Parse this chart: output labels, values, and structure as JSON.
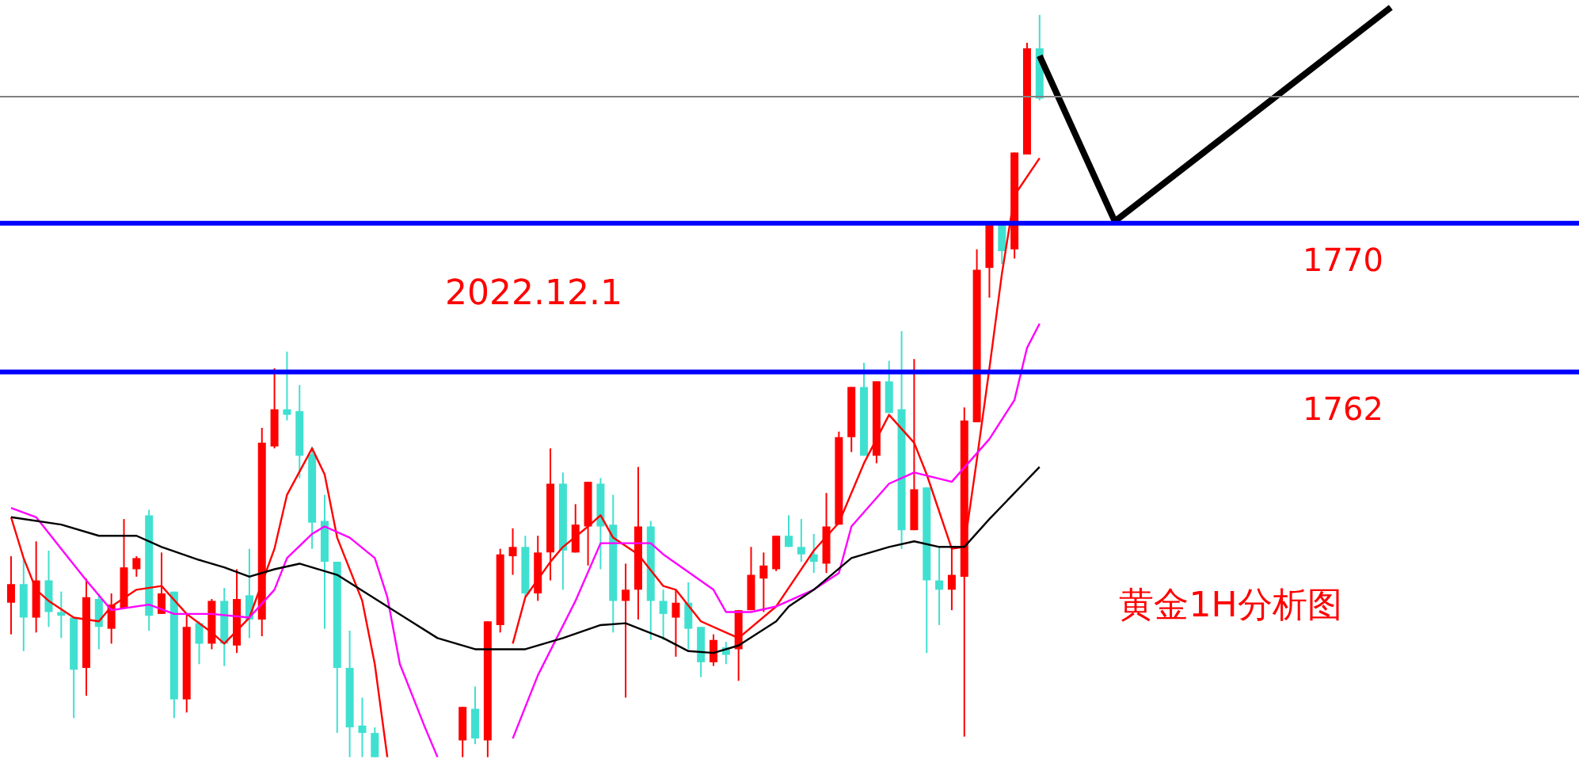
{
  "chart_data": {
    "type": "candlestick",
    "categories": [
      null,
      null,
      null,
      null,
      null,
      null,
      null,
      null,
      null,
      null,
      null,
      null,
      null,
      null,
      null,
      null,
      null,
      null,
      null,
      null,
      null,
      null,
      null,
      null,
      null,
      null,
      null,
      null,
      null,
      null,
      null,
      null,
      null,
      null,
      null,
      null,
      null,
      null,
      null,
      null,
      null,
      null,
      null,
      null,
      null,
      null,
      null,
      null,
      null,
      null,
      null,
      null,
      null,
      null,
      null,
      null,
      null,
      null,
      null,
      null,
      null,
      null,
      null,
      null,
      null,
      null,
      null,
      null,
      null,
      null,
      null,
      null,
      null,
      null,
      null,
      null,
      null,
      null,
      null,
      null,
      null,
      null,
      null,
      null,
      null,
      null,
      null,
      null,
      null,
      null,
      null,
      null,
      null,
      null,
      null,
      null,
      null,
      null,
      null,
      null,
      null,
      null,
      null,
      null,
      null,
      null,
      null,
      null,
      null,
      null,
      null,
      null,
      null,
      null,
      null,
      null,
      null,
      null,
      null,
      null,
      null,
      null,
      null,
      null,
      null
    ],
    "ohlc": [
      [
        1749.6,
        1752.1,
        1747.9,
        1750.6
      ],
      [
        1750.6,
        1752.0,
        1747.0,
        1748.8
      ],
      [
        1748.8,
        1752.9,
        1748.0,
        1750.8
      ],
      [
        1750.8,
        1752.4,
        1748.3,
        1749.1
      ],
      [
        1749.1,
        1750.2,
        1747.7,
        1748.9
      ],
      [
        1748.8,
        1748.8,
        1743.4,
        1746.0
      ],
      [
        1746.1,
        1750.9,
        1744.6,
        1749.9
      ],
      [
        1749.8,
        1750.1,
        1747.1,
        1748.3
      ],
      [
        1748.2,
        1750.1,
        1747.4,
        1749.5
      ],
      [
        1749.3,
        1754.1,
        1749.3,
        1751.5
      ],
      [
        1751.4,
        1752.1,
        1751.0,
        1752.0
      ],
      [
        1754.3,
        1754.6,
        1748.1,
        1748.9
      ],
      [
        1749.0,
        1752.3,
        1749.0,
        1750.1
      ],
      [
        1750.2,
        1750.2,
        1743.4,
        1744.4
      ],
      [
        1744.4,
        1749.0,
        1743.7,
        1748.3
      ],
      [
        1748.5,
        1748.6,
        1746.3,
        1747.4
      ],
      [
        1747.4,
        1749.8,
        1747.1,
        1749.7
      ],
      [
        1749.7,
        1750.4,
        1746.2,
        1747.4
      ],
      [
        1747.3,
        1751.4,
        1746.9,
        1749.8
      ],
      [
        1750.0,
        1752.5,
        1747.7,
        1748.7
      ],
      [
        1748.7,
        1759.0,
        1747.8,
        1758.2
      ],
      [
        1758.0,
        1762.2,
        1757.9,
        1760.0
      ],
      [
        1760.0,
        1763.1,
        1759.4,
        1759.7
      ],
      [
        1759.9,
        1761.3,
        1756.3,
        1757.5
      ],
      [
        1757.6,
        1758.0,
        1752.5,
        1753.9
      ],
      [
        1754.0,
        1755.4,
        1748.2,
        1751.8
      ],
      [
        1751.8,
        1751.8,
        1742.6,
        1746.1
      ],
      [
        1746.1,
        1748.1,
        1741.3,
        1742.9
      ],
      [
        1743.0,
        1744.5,
        1741.3,
        1742.6
      ],
      [
        1742.6,
        1742.9,
        1741.3,
        1741.3
      ],
      null,
      null,
      null,
      null,
      null,
      null,
      [
        1742.2,
        1744.0,
        1741.3,
        1744.0
      ],
      [
        1743.9,
        1745.1,
        1742.0,
        1742.3
      ],
      [
        1742.2,
        1748.6,
        1741.3,
        1748.6
      ],
      [
        1748.4,
        1752.5,
        1748.0,
        1752.2
      ],
      [
        1752.1,
        1753.6,
        1751.1,
        1752.6
      ],
      [
        1752.6,
        1753.2,
        1749.9,
        1750.1
      ],
      [
        1750.1,
        1753.2,
        1749.7,
        1752.3
      ],
      [
        1752.3,
        1757.9,
        1750.8,
        1756.0
      ],
      [
        1756.0,
        1756.6,
        1750.3,
        1752.4
      ],
      [
        1752.3,
        1754.9,
        1752.3,
        1753.8
      ],
      [
        1753.7,
        1756.1,
        1751.6,
        1756.1
      ],
      [
        1756.0,
        1756.3,
        1751.4,
        1753.7
      ],
      [
        1753.8,
        1755.4,
        1748.0,
        1749.7
      ],
      [
        1749.7,
        1751.7,
        1744.5,
        1750.3
      ],
      [
        1750.3,
        1756.9,
        1748.7,
        1753.7
      ],
      [
        1753.7,
        1754.0,
        1747.6,
        1749.7
      ],
      [
        1749.7,
        1750.3,
        1747.6,
        1749.0
      ],
      [
        1748.8,
        1750.3,
        1746.7,
        1749.6
      ],
      [
        1749.6,
        1750.7,
        1747.1,
        1748.2
      ],
      [
        1748.3,
        1748.3,
        1745.6,
        1746.4
      ],
      [
        1746.4,
        1747.9,
        1746.2,
        1747.6
      ],
      [
        1747.2,
        1747.5,
        1746.3,
        1746.8
      ],
      [
        1747.1,
        1749.2,
        1745.4,
        1749.2
      ],
      [
        1749.2,
        1752.6,
        1749.2,
        1751.1
      ],
      [
        1750.9,
        1752.3,
        1749.1,
        1751.6
      ],
      [
        1751.4,
        1753.2,
        1751.3,
        1753.2
      ],
      [
        1753.2,
        1754.3,
        1752.6,
        1752.6
      ],
      [
        1752.6,
        1754.1,
        1751.8,
        1752.2
      ],
      [
        1752.2,
        1753.3,
        1751.2,
        1751.8
      ],
      [
        1751.7,
        1755.5,
        1751.2,
        1753.7
      ],
      [
        1753.8,
        1758.8,
        1753.8,
        1758.5
      ],
      [
        1758.5,
        1761.2,
        1757.7,
        1761.2
      ],
      [
        1761.2,
        1762.5,
        1757.5,
        1757.5
      ],
      [
        1757.5,
        1761.5,
        1757.1,
        1761.5
      ],
      [
        1761.5,
        1762.6,
        1759.8,
        1759.8
      ],
      [
        1760.0,
        1764.2,
        1752.5,
        1753.5
      ],
      [
        1753.5,
        1762.7,
        1753.5,
        1755.7
      ],
      [
        1755.8,
        1755.8,
        1746.9,
        1750.8
      ],
      [
        1750.8,
        1752.6,
        1748.4,
        1750.3
      ],
      [
        1750.3,
        1752.6,
        1749.2,
        1751.1
      ],
      [
        1751.0,
        1760.1,
        1742.4,
        1759.4
      ],
      [
        1759.3,
        1768.6,
        1759.3,
        1767.5
      ],
      [
        1767.6,
        1770.1,
        1766.0,
        1769.9
      ],
      [
        1769.9,
        1769.9,
        1767.8,
        1768.5
      ],
      [
        1768.6,
        1773.8,
        1768.1,
        1773.8
      ],
      [
        1773.7,
        1779.7,
        1773.7,
        1779.4
      ],
      [
        1779.4,
        1781.2,
        1776.6,
        1776.7
      ],
      null,
      null,
      null,
      null,
      null,
      null,
      null,
      null,
      null,
      null,
      null,
      null,
      null,
      null,
      null,
      null,
      null,
      null,
      null,
      null,
      null,
      null,
      null,
      null,
      null,
      null,
      null,
      null,
      null,
      null,
      null,
      null,
      null,
      null,
      null,
      null,
      null,
      null,
      null,
      null,
      null,
      null
    ],
    "colors": [
      "#ff0000",
      "#40e0d0",
      "#ff0000",
      "#40e0d0",
      "#40e0d0",
      "#40e0d0",
      "#ff0000",
      "#40e0d0",
      "#ff0000",
      "#ff0000",
      "#ff0000",
      "#40e0d0",
      "#ff0000",
      "#40e0d0",
      "#ff0000",
      "#40e0d0",
      "#ff0000",
      "#40e0d0",
      "#ff0000",
      "#40e0d0",
      "#ff0000",
      "#ff0000",
      "#40e0d0",
      "#40e0d0",
      "#40e0d0",
      "#40e0d0",
      "#40e0d0",
      "#40e0d0",
      "#40e0d0",
      "#40e0d0",
      null,
      null,
      null,
      null,
      null,
      null,
      "#ff0000",
      "#40e0d0",
      "#ff0000",
      "#ff0000",
      "#ff0000",
      "#40e0d0",
      "#ff0000",
      "#ff0000",
      "#40e0d0",
      "#ff0000",
      "#ff0000",
      "#40e0d0",
      "#40e0d0",
      "#ff0000",
      "#ff0000",
      "#40e0d0",
      "#40e0d0",
      "#ff0000",
      "#40e0d0",
      "#40e0d0",
      "#ff0000",
      "#40e0d0",
      "#ff0000",
      "#ff0000",
      "#ff0000",
      "#ff0000",
      "#40e0d0",
      "#40e0d0",
      "#40e0d0",
      "#ff0000",
      "#ff0000",
      "#ff0000",
      "#40e0d0",
      "#ff0000",
      "#40e0d0",
      "#40e0d0",
      "#ff0000",
      "#40e0d0",
      "#40e0d0",
      "#ff0000",
      "#ff0000",
      "#ff0000",
      "#ff0000",
      "#40e0d0",
      "#ff0000",
      "#ff0000",
      "#40e0d0",
      null,
      null,
      null,
      null,
      null,
      null,
      null,
      null,
      null,
      null,
      null,
      null,
      null,
      null,
      null,
      null,
      null,
      null,
      null,
      null,
      null,
      null,
      null,
      null,
      null,
      null,
      null,
      null,
      null,
      null,
      null,
      null,
      null,
      null,
      null,
      null,
      null,
      null,
      null,
      null,
      null,
      null
    ],
    "series": [
      {
        "type": "line",
        "color": "#ff0000",
        "values": [
          1754.2,
          1752.0,
          1750.3,
          1749.7,
          null,
          1748.8,
          null,
          1748.6,
          1749.4,
          null,
          1750.3,
          null,
          1750.5,
          null,
          1749.0,
          null,
          1748.0,
          1747.4,
          null,
          1748.8,
          null,
          1752.5,
          1755.4,
          null,
          1757.9,
          1756.5,
          1753.1,
          null,
          1749.7,
          1746.3,
          1741.3,
          null,
          null,
          null,
          null,
          null,
          null,
          null,
          null,
          null,
          null,
          null,
          null,
          null,
          null,
          null,
          null,
          null,
          null,
          null,
          null,
          null,
          null,
          null,
          null,
          null,
          null,
          null,
          null,
          null,
          null,
          null,
          null,
          null,
          null,
          null,
          null,
          null,
          null,
          null,
          null,
          null,
          null,
          null,
          null,
          null,
          null,
          null,
          null,
          null,
          null,
          null,
          null,
          null,
          null,
          null,
          null,
          null,
          null,
          null,
          null,
          null,
          null,
          null,
          null,
          null,
          null,
          null,
          null,
          null,
          null,
          null,
          null,
          null,
          null,
          null,
          null,
          null,
          null,
          null,
          null,
          null,
          null,
          null,
          null,
          null,
          null,
          null,
          null,
          null,
          null,
          null,
          null,
          null,
          null
        ]
      },
      {
        "type": "line",
        "color": "#ff0000",
        "values": [
          null,
          null,
          null,
          null,
          null,
          null,
          null,
          null,
          null,
          null,
          null,
          null,
          null,
          null,
          null,
          null,
          null,
          null,
          null,
          null,
          null,
          null,
          null,
          null,
          null,
          null,
          null,
          null,
          null,
          null,
          null,
          null,
          null,
          null,
          null,
          null,
          null,
          null,
          null,
          null,
          1747.4,
          1749.9,
          null,
          1751.8,
          1752.6,
          null,
          1753.7,
          1754.3,
          1753.1,
          null,
          1752.2,
          null,
          1750.5,
          1750.3,
          null,
          1748.6,
          null,
          1748.0,
          1747.7,
          null,
          null,
          1749.4,
          null,
          null,
          1752.4,
          null,
          1753.9,
          null,
          1757.1,
          null,
          1759.7,
          null,
          1758.2,
          1756.5,
          null,
          1752.5,
          1752.6,
          1757.3,
          1762.2,
          1767.3,
          1771.5,
          null,
          1773.5,
          null,
          null,
          null,
          null,
          null,
          null,
          null,
          null,
          null,
          null,
          null,
          null,
          null,
          null,
          null,
          null,
          null,
          null,
          null,
          null,
          null,
          null,
          null,
          null,
          null,
          null,
          null,
          null,
          null,
          null,
          null,
          null,
          null,
          null,
          null,
          null,
          null,
          null,
          null,
          null,
          null,
          null
        ]
      },
      {
        "type": "line",
        "color": "#ff00ff",
        "values": [
          1754.7,
          null,
          1754.2,
          null,
          1752.5,
          null,
          1750.8,
          null,
          1749.2,
          null,
          null,
          1749.5,
          null,
          1749.0,
          null,
          null,
          1749.0,
          null,
          null,
          1748.8,
          null,
          1750.3,
          1752.0,
          null,
          1753.3,
          1753.7,
          null,
          1753.1,
          null,
          1752.0,
          1749.9,
          1746.3,
          null,
          1742.9,
          1741.3,
          null,
          null,
          null,
          null,
          null,
          null,
          null,
          null,
          null,
          null,
          null,
          null,
          null,
          null,
          null,
          null,
          null,
          null,
          null,
          null,
          null,
          null,
          null,
          null,
          null,
          null,
          null,
          null,
          null,
          null,
          null,
          null,
          null,
          null,
          null,
          null,
          null,
          null,
          null,
          null,
          null,
          null,
          null,
          null,
          null,
          null,
          null,
          null,
          null,
          null,
          null,
          null,
          null,
          null,
          null,
          null,
          null,
          null,
          null,
          null,
          null,
          null,
          null,
          null,
          null,
          null,
          null,
          null,
          null,
          null,
          null,
          null,
          null,
          null,
          null,
          null,
          null,
          null,
          null,
          null,
          null,
          null,
          null,
          null,
          null,
          null,
          null,
          null,
          null,
          null
        ]
      },
      {
        "type": "line",
        "color": "#ff00ff",
        "values": [
          null,
          null,
          null,
          null,
          null,
          null,
          null,
          null,
          null,
          null,
          null,
          null,
          null,
          null,
          null,
          null,
          null,
          null,
          null,
          null,
          null,
          null,
          null,
          null,
          null,
          null,
          null,
          null,
          null,
          null,
          null,
          null,
          null,
          null,
          null,
          null,
          null,
          null,
          null,
          null,
          1742.3,
          null,
          1745.7,
          null,
          null,
          1749.7,
          null,
          1752.8,
          null,
          null,
          null,
          1752.8,
          1752.2,
          null,
          null,
          null,
          1750.3,
          1749.1,
          null,
          1749.1,
          null,
          1749.4,
          null,
          null,
          1750.3,
          null,
          1751.2,
          1753.7,
          null,
          null,
          1756.0,
          null,
          1756.6,
          null,
          null,
          1756.1,
          null,
          null,
          1758.4,
          null,
          1760.5,
          1763.3,
          1764.6,
          null,
          null,
          null,
          null,
          null,
          null,
          null,
          null,
          null,
          null,
          null,
          null,
          null,
          null,
          null,
          null,
          null,
          null,
          null,
          null,
          null,
          null,
          null,
          null,
          null,
          null,
          null,
          null,
          null,
          null,
          null,
          null,
          null,
          null,
          null,
          null,
          null,
          null,
          null,
          null,
          null,
          null
        ]
      },
      {
        "type": "line",
        "color": "#000000",
        "values": [
          1754.2,
          null,
          null,
          null,
          1753.8,
          null,
          null,
          1753.2,
          null,
          null,
          1753.2,
          null,
          1752.6,
          null,
          null,
          1751.9,
          null,
          1751.5,
          null,
          1751.0,
          null,
          1751.4,
          null,
          1751.7,
          null,
          null,
          1751.1,
          null,
          null,
          null,
          1749.4,
          null,
          null,
          null,
          1747.7,
          null,
          null,
          1747.1,
          null,
          null,
          null,
          1747.1,
          null,
          null,
          1747.7,
          null,
          null,
          1748.4,
          null,
          1748.5,
          null,
          null,
          1747.7,
          null,
          1747.0,
          null,
          1746.9,
          null,
          1747.3,
          null,
          null,
          1748.6,
          1749.4,
          null,
          1750.3,
          null,
          null,
          1752.0,
          null,
          null,
          1752.6,
          null,
          1752.9,
          null,
          1752.6,
          null,
          1752.6,
          null,
          1754.1,
          null,
          null,
          null,
          1756.9,
          null,
          null,
          null,
          null,
          null,
          null,
          null,
          null,
          null,
          null,
          null,
          null,
          null,
          null,
          null,
          null,
          null,
          null,
          null,
          null,
          null,
          null,
          null,
          null,
          null,
          null,
          null,
          null,
          null,
          null,
          null,
          null,
          null,
          null,
          null,
          null,
          null,
          null,
          null,
          null,
          null,
          null
        ]
      },
      {
        "type": "line",
        "color": "#000000",
        "values": [
          null,
          null,
          null,
          null,
          null,
          null,
          null,
          null,
          null,
          null,
          null,
          null,
          null,
          null,
          null,
          null,
          null,
          null,
          null,
          null,
          null,
          null,
          null,
          null,
          null,
          null,
          null,
          null,
          null,
          null,
          null,
          null,
          null,
          null,
          null,
          null,
          null,
          null,
          null,
          null,
          null,
          null,
          null,
          null,
          null,
          null,
          null,
          null,
          null,
          null,
          null,
          null,
          null,
          null,
          null,
          null,
          null,
          null,
          null,
          null,
          null,
          null,
          null,
          null,
          null,
          null,
          null,
          null,
          null,
          null,
          null,
          null,
          null,
          null,
          null,
          null,
          null,
          null,
          null,
          null,
          null,
          null,
          1779.0,
          null,
          null,
          null,
          null,
          null,
          1770.1,
          null,
          null,
          null,
          null,
          null,
          null,
          null,
          null,
          null,
          null,
          null,
          null,
          null,
          null,
          null,
          null,
          null,
          null,
          null,
          null,
          null,
          1781.6,
          null,
          null,
          null,
          null,
          null,
          null,
          null,
          null,
          null,
          null,
          null,
          null,
          null,
          null
        ]
      }
    ],
    "ref_lines": [
      {
        "axis": "y",
        "value": 1770,
        "label": "1770",
        "color": "#0000ff"
      },
      {
        "axis": "y",
        "value": 1762,
        "label": "1762",
        "color": "#0000ff"
      },
      {
        "axis": "y",
        "value": 1776.8,
        "color": "#808080"
      }
    ],
    "annotations": [
      "2022.12.1",
      "黄金1H分析图"
    ],
    "ylim": [
      1741.2,
      1782.0
    ],
    "tick_labels": false,
    "grid": false
  }
}
